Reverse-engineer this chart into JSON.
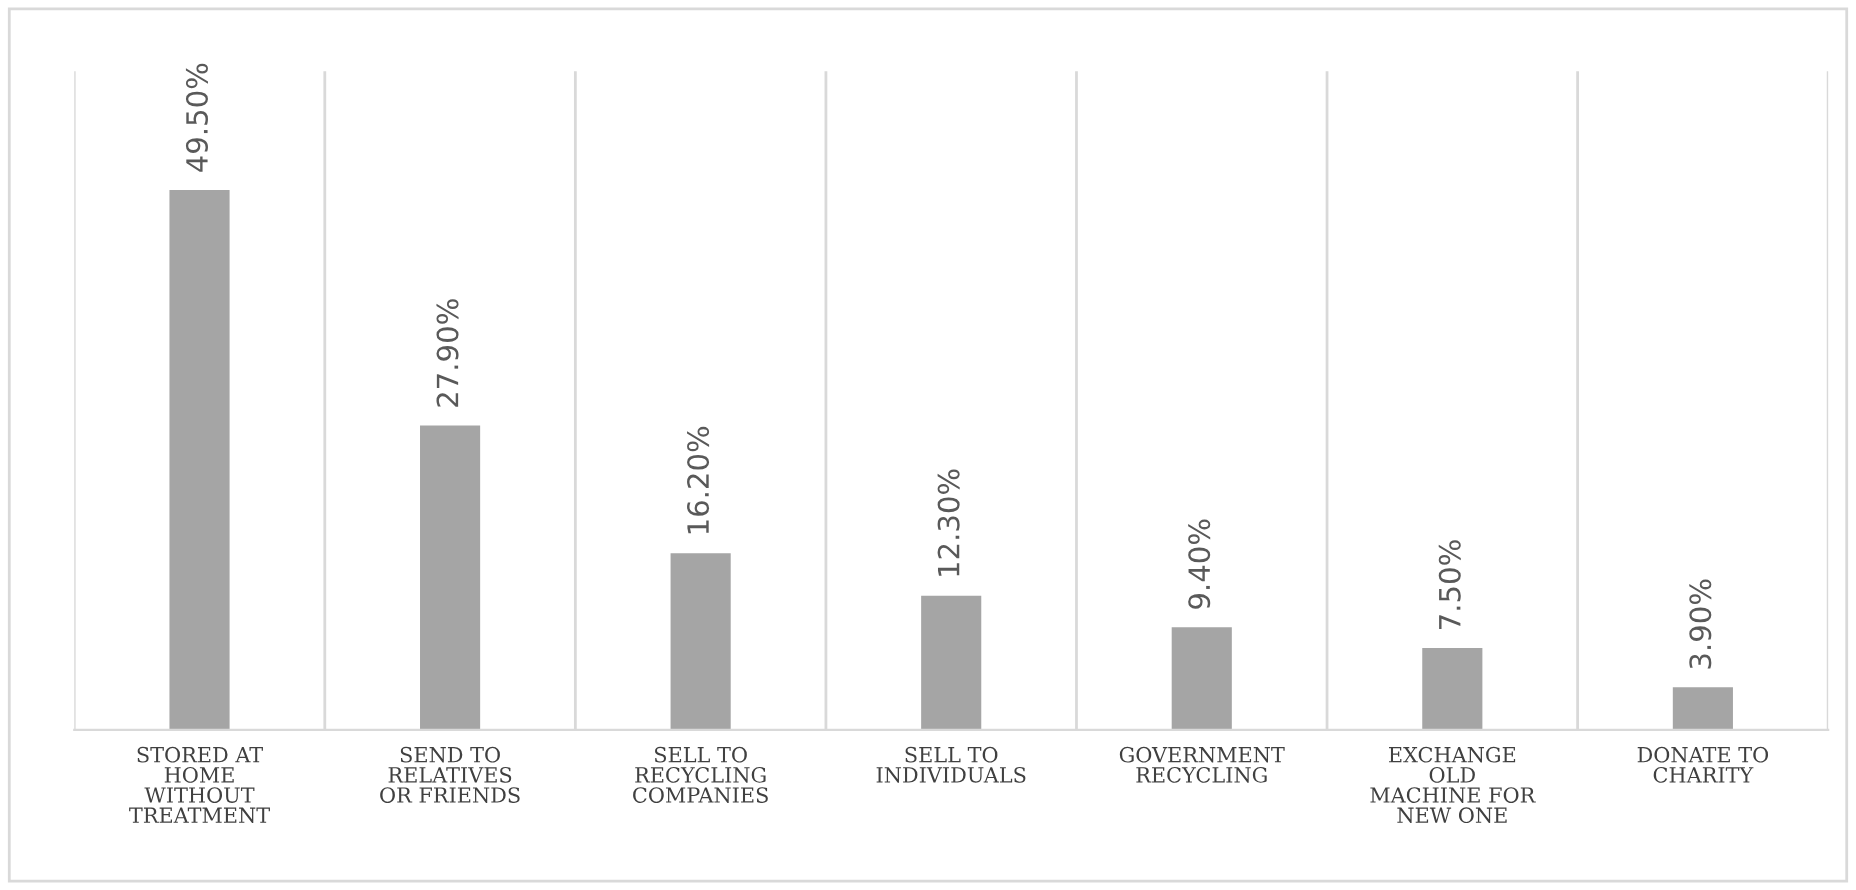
{
  "chart_data": {
    "type": "bar",
    "categories": [
      "STORED AT\nHOME\nWITHOUT\nTREATMENT",
      "SEND TO\nRELATIVES\nOR FRIENDS",
      "SELL TO\nRECYCLING\nCOMPANIES",
      "SELL TO\nINDIVIDUALS",
      "GOVERNMENT\nRECYCLING",
      "EXCHANGE\nOLD\nMACHINE FOR\nNEW ONE",
      "DONATE TO\nCHARITY"
    ],
    "values": [
      49.5,
      27.9,
      16.2,
      12.3,
      9.4,
      7.5,
      3.9
    ],
    "color": "#a5a5a5",
    "value_labels": [
      "49.50%",
      "27.90%",
      "16.20%",
      "12.30%",
      "9.40%",
      "7.50%",
      "3.90%"
    ],
    "grid": "x",
    "legend": false
  }
}
